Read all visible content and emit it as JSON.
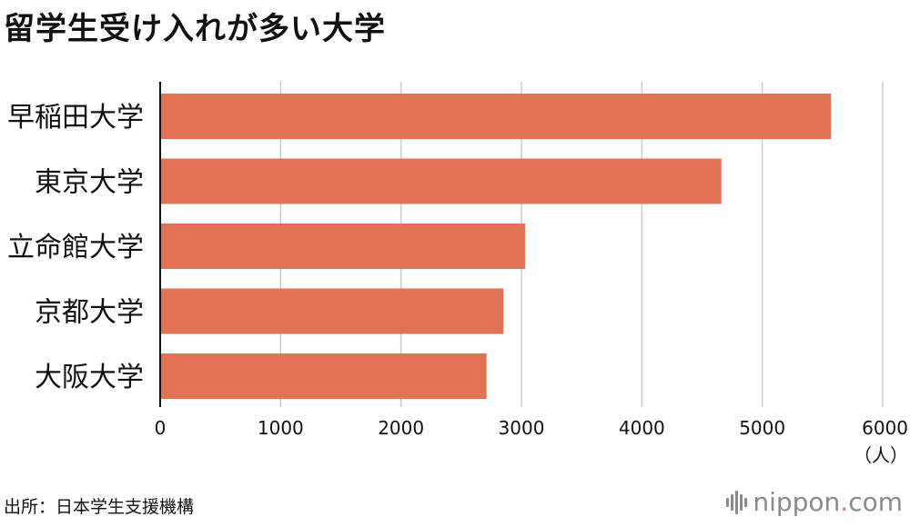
{
  "title": "留学生受け入れが多い大学",
  "source": "出所：日本学生支援機構",
  "logo": {
    "name": "nippon",
    "dot": ".",
    "tld": "com"
  },
  "colors": {
    "bar": "#E37154",
    "grid": "#cccccc",
    "axis": "#111111",
    "logo_accent": "#e8735a"
  },
  "chart_data": {
    "type": "bar",
    "orientation": "horizontal",
    "categories": [
      "早稲田大学",
      "東京大学",
      "立命館大学",
      "京都大学",
      "大阪大学"
    ],
    "values": [
      5570,
      4660,
      3030,
      2850,
      2710
    ],
    "xlim": [
      0,
      6000
    ],
    "xticks": [
      "0",
      "1000",
      "2000",
      "3000",
      "4000",
      "5000",
      "6000"
    ],
    "xunit": "（人）",
    "grid": true
  }
}
